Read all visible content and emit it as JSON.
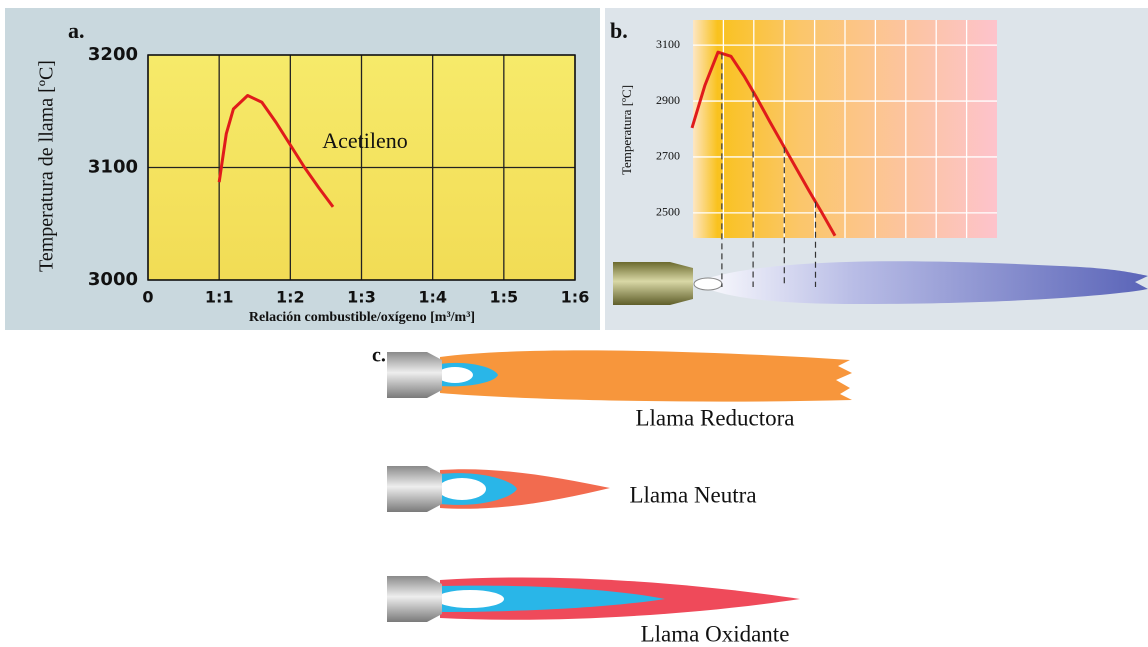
{
  "chart_data": [
    {
      "type": "line",
      "panel_label": "a.",
      "ylabel": "Temperatura de llama [ºC]",
      "xlabel": "Relación combustible/oxígeno [m³/m³]",
      "xlim": [
        0,
        6
      ],
      "xticks": [
        0,
        {
          "value": 1,
          "label": "1:1"
        },
        {
          "value": 2,
          "label": "1:2"
        },
        {
          "value": 3,
          "label": "1:3"
        },
        {
          "value": 4,
          "label": "1:4"
        },
        {
          "value": 5,
          "label": "1:5"
        },
        {
          "value": 6,
          "label": "1:6"
        }
      ],
      "ylim": [
        3000,
        3200
      ],
      "yticks": [
        3000,
        3100,
        3200
      ],
      "grid": true,
      "x": [
        1,
        1.1,
        1.2,
        1.4,
        1.6,
        1.8,
        2,
        2.2,
        2.4,
        2.6
      ],
      "series": [
        {
          "name": "Acetileno",
          "color": "#e01b1b",
          "values": [
            3087,
            3130,
            3152,
            3164,
            3158,
            3140,
            3120,
            3100,
            3082,
            3065
          ]
        }
      ]
    },
    {
      "type": "line",
      "panel_label": "b.",
      "ylabel": "Temperatura [ºC]",
      "ylim": [
        2410,
        3190
      ],
      "yticks": [
        2500,
        2700,
        2900,
        3100
      ],
      "grid": true,
      "series": [
        {
          "color": "#e01b1b",
          "values": [
            2804,
            2957,
            3075,
            3060,
            2990,
            2910,
            2825,
            2743,
            2661,
            2579,
            2500,
            2418
          ]
        }
      ]
    }
  ],
  "panel_c": {
    "label": "c.",
    "flames": [
      {
        "label": "Llama Reductora"
      },
      {
        "label": "Llama Neutra"
      },
      {
        "label": "Llama Oxidante"
      }
    ]
  }
}
